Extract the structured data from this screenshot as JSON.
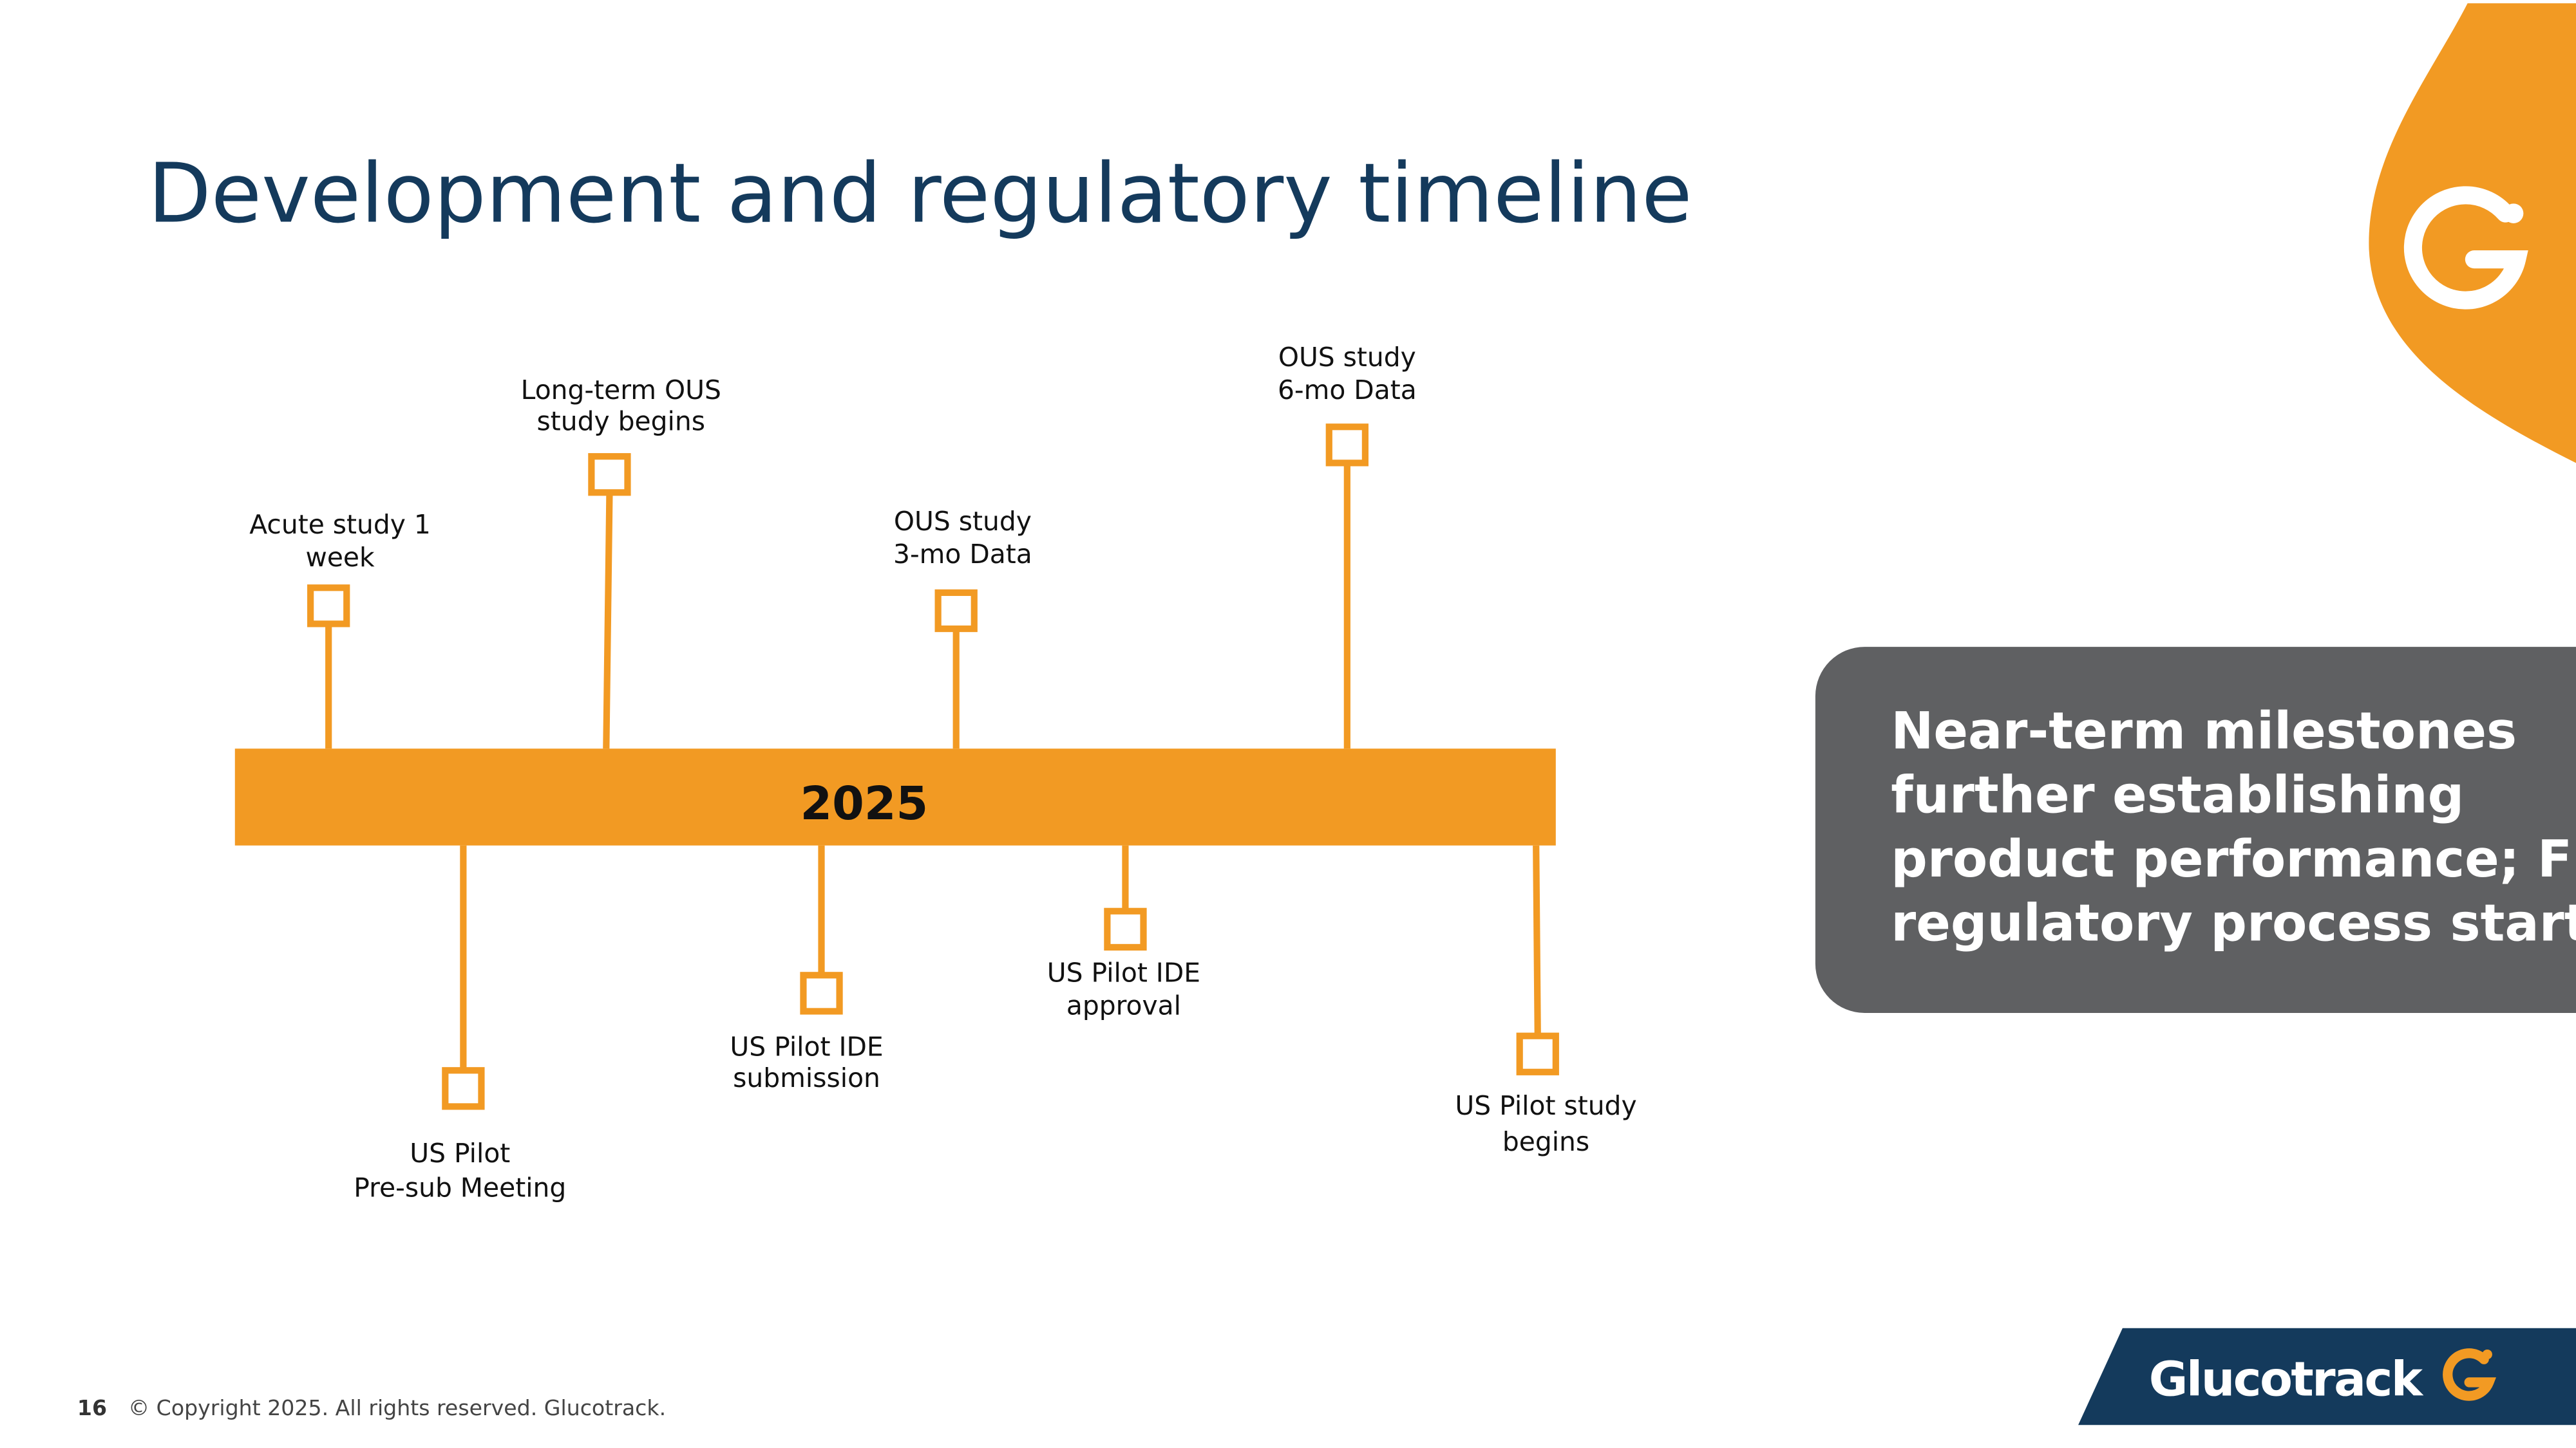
{
  "title": "Development and regulatory timeline",
  "timeline": {
    "year": "2025",
    "milestones_above": [
      {
        "label": [
          "Acute study 1",
          "week"
        ]
      },
      {
        "label": [
          "Long-term OUS",
          "study begins"
        ]
      },
      {
        "label": [
          "OUS study",
          "3-mo Data"
        ]
      },
      {
        "label": [
          "OUS study",
          "6-mo Data"
        ]
      }
    ],
    "milestones_below": [
      {
        "label": [
          "US Pilot",
          "Pre-sub Meeting"
        ]
      },
      {
        "label": [
          "US Pilot IDE",
          "submission"
        ]
      },
      {
        "label": [
          "US Pilot IDE",
          "approval"
        ]
      },
      {
        "label": [
          "US Pilot study",
          "begins"
        ]
      }
    ]
  },
  "callout": [
    "Near-term milestones",
    "further establishing",
    "product performance; FDA",
    "regulatory process started"
  ],
  "footer": {
    "page": "16",
    "copyright": "© Copyright 2025. All rights reserved. Glucotrack."
  },
  "logo": {
    "text": "Glucotrack"
  }
}
